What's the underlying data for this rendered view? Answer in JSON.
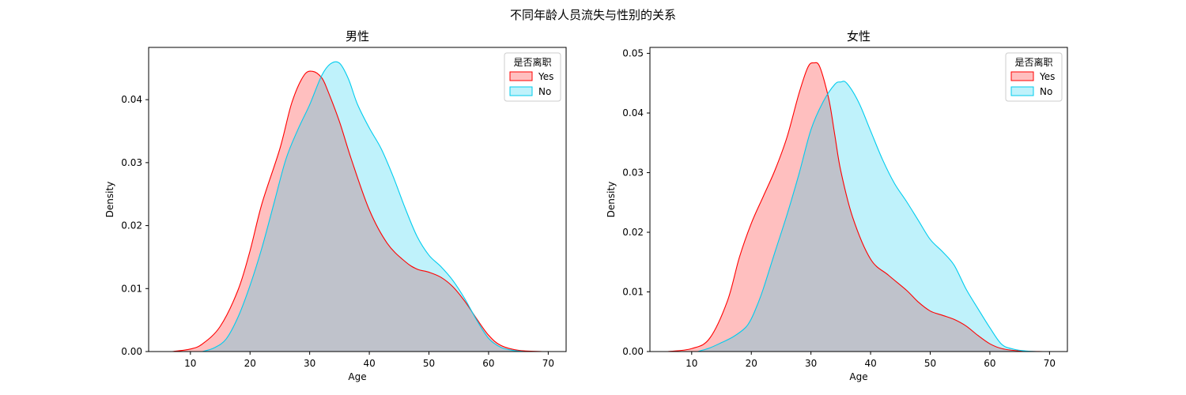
{
  "suptitle": "不同年龄人员流失与性别的关系",
  "colors": {
    "Yes": "#ff0000",
    "No": "#00ccee"
  },
  "chart_data": [
    {
      "type": "area",
      "title": "男性",
      "xlabel": "Age",
      "ylabel": "Density",
      "xlim": [
        3,
        73
      ],
      "ylim": [
        0,
        0.0483
      ],
      "xticks": [
        10,
        20,
        30,
        40,
        50,
        60,
        70
      ],
      "yticks": [
        0.0,
        0.01,
        0.02,
        0.03,
        0.04
      ],
      "ytick_labels": [
        "0.00",
        "0.01",
        "0.02",
        "0.03",
        "0.04"
      ],
      "legend": {
        "title": "是否离职",
        "placement": "top-right"
      },
      "series": [
        {
          "name": "Yes",
          "x": [
            7,
            10,
            12,
            15,
            18,
            20,
            22,
            25,
            27,
            29,
            30.5,
            32,
            33,
            35,
            37,
            40,
            43,
            46,
            48,
            50,
            52,
            54,
            56,
            58,
            60,
            62,
            65,
            69
          ],
          "y": [
            0,
            0.0004,
            0.0012,
            0.004,
            0.0098,
            0.016,
            0.0235,
            0.0322,
            0.0395,
            0.0438,
            0.0445,
            0.0435,
            0.0415,
            0.0365,
            0.0305,
            0.0225,
            0.0172,
            0.0143,
            0.0131,
            0.0126,
            0.0118,
            0.0103,
            0.008,
            0.0052,
            0.0026,
            0.001,
            0.0002,
            0
          ]
        },
        {
          "name": "No",
          "x": [
            12,
            14,
            16,
            18,
            20,
            22,
            24,
            26,
            28,
            30,
            32,
            33.5,
            35,
            36.5,
            38,
            40,
            42,
            44,
            46,
            48,
            50,
            52,
            54,
            56,
            58,
            60,
            62,
            64,
            66
          ],
          "y": [
            0,
            0.0006,
            0.002,
            0.0055,
            0.0105,
            0.0165,
            0.0235,
            0.0305,
            0.0352,
            0.0392,
            0.0438,
            0.0457,
            0.0458,
            0.0433,
            0.0393,
            0.0355,
            0.0322,
            0.0278,
            0.0228,
            0.0183,
            0.0153,
            0.0135,
            0.0113,
            0.0084,
            0.005,
            0.0021,
            0.0007,
            0.0002,
            0
          ]
        }
      ]
    },
    {
      "type": "area",
      "title": "女性",
      "xlabel": "Age",
      "ylabel": "Density",
      "xlim": [
        3,
        73
      ],
      "ylim": [
        0,
        0.051
      ],
      "xticks": [
        10,
        20,
        30,
        40,
        50,
        60,
        70
      ],
      "yticks": [
        0.0,
        0.01,
        0.02,
        0.03,
        0.04,
        0.05
      ],
      "ytick_labels": [
        "0.00",
        "0.01",
        "0.02",
        "0.03",
        "0.04",
        "0.05"
      ],
      "legend": {
        "title": "是否离职",
        "placement": "top-right"
      },
      "series": [
        {
          "name": "Yes",
          "x": [
            6,
            10,
            13,
            16,
            18,
            20,
            22,
            24,
            26,
            28,
            29.5,
            30.5,
            31.5,
            33,
            34,
            35,
            37,
            40,
            43,
            46,
            48,
            50,
            52,
            54,
            56,
            58,
            60,
            62,
            65,
            69
          ],
          "y": [
            0,
            0.0005,
            0.0022,
            0.0085,
            0.0158,
            0.0215,
            0.026,
            0.0305,
            0.036,
            0.0433,
            0.0477,
            0.0484,
            0.0477,
            0.0423,
            0.0363,
            0.0303,
            0.0225,
            0.0155,
            0.0128,
            0.0103,
            0.0083,
            0.0068,
            0.0061,
            0.0054,
            0.0043,
            0.0027,
            0.0013,
            0.0005,
            0.0001,
            0
          ]
        },
        {
          "name": "No",
          "x": [
            11,
            13,
            15,
            17,
            19,
            20,
            21,
            22,
            24,
            26,
            28,
            30,
            32,
            34,
            35,
            36,
            38,
            40,
            42,
            44,
            46,
            48,
            50,
            52,
            54,
            56,
            58,
            60,
            62,
            64,
            66,
            68
          ],
          "y": [
            0,
            0.0006,
            0.0015,
            0.0025,
            0.004,
            0.0055,
            0.0078,
            0.0105,
            0.0168,
            0.023,
            0.0298,
            0.0372,
            0.0418,
            0.0448,
            0.0452,
            0.045,
            0.0418,
            0.037,
            0.0322,
            0.0282,
            0.0252,
            0.022,
            0.0188,
            0.0168,
            0.0145,
            0.0105,
            0.0072,
            0.004,
            0.0012,
            0.0004,
            0.0001,
            0
          ]
        }
      ]
    }
  ]
}
